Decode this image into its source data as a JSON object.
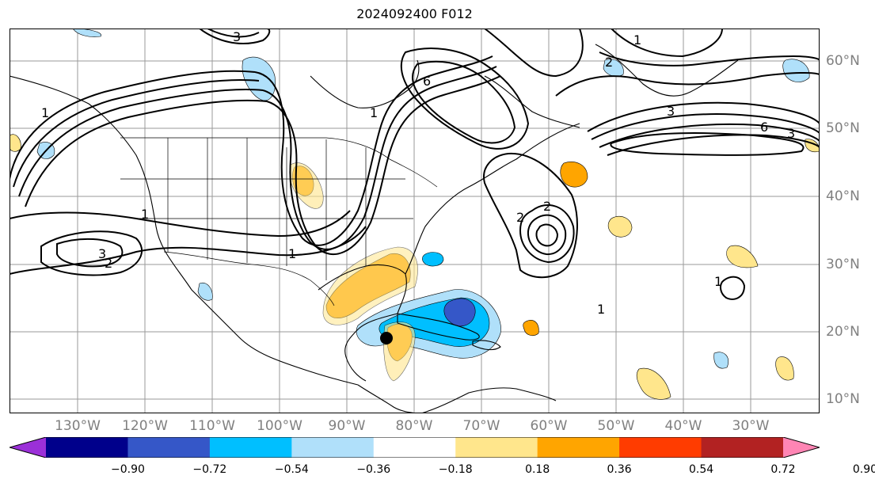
{
  "title": "2024092400 F012",
  "lon_labels": [
    "130°W",
    "120°W",
    "110°W",
    "100°W",
    "90°W",
    "80°W",
    "70°W",
    "60°W",
    "50°W",
    "40°W",
    "30°W"
  ],
  "lat_labels": [
    "60°N",
    "50°N",
    "40°N",
    "30°N",
    "20°N",
    "10°N"
  ],
  "colorbar": {
    "ticks": [
      "−0.90",
      "−0.72",
      "−0.54",
      "−0.36",
      "−0.18",
      "0.18",
      "0.36",
      "0.54",
      "0.72",
      "0.90"
    ],
    "colors": [
      "#9b30d8",
      "#00008b",
      "#3557c8",
      "#00bfff",
      "#b0e0fa",
      "#ffffff",
      "#ffe68c",
      "#ffa500",
      "#ff3c00",
      "#b22222",
      "#ff85b4"
    ]
  },
  "contour_labels": [
    "3",
    "2",
    "1",
    "6",
    "1",
    "2",
    "6",
    "3",
    "2",
    "3",
    "1",
    "3",
    "2",
    "1",
    "1",
    "1",
    "1"
  ],
  "marker": "storm-center-marker"
}
